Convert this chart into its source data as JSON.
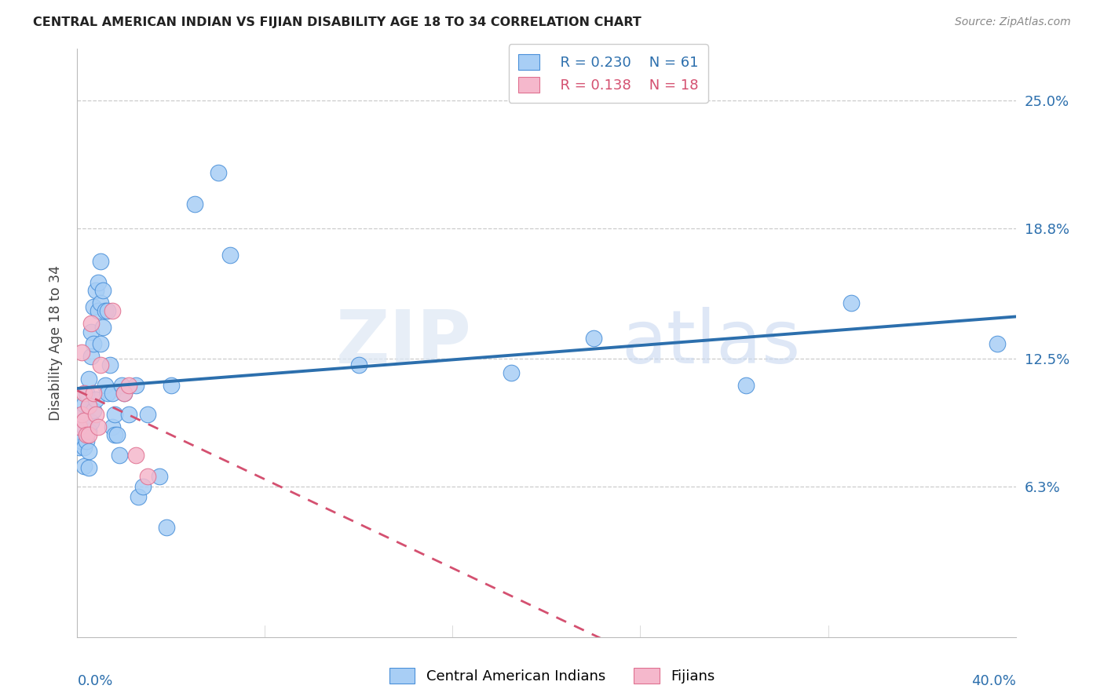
{
  "title": "CENTRAL AMERICAN INDIAN VS FIJIAN DISABILITY AGE 18 TO 34 CORRELATION CHART",
  "source": "Source: ZipAtlas.com",
  "ylabel": "Disability Age 18 to 34",
  "ytick_values": [
    0.063,
    0.125,
    0.188,
    0.25
  ],
  "ytick_labels": [
    "6.3%",
    "12.5%",
    "18.8%",
    "25.0%"
  ],
  "xlim": [
    0.0,
    0.4
  ],
  "ylim": [
    -0.01,
    0.275
  ],
  "legend_r1": "R = 0.230",
  "legend_n1": "N = 61",
  "legend_r2": "R = 0.138",
  "legend_n2": "N = 18",
  "blue_color": "#a8cef5",
  "blue_edge_color": "#4a90d9",
  "pink_color": "#f5b8cc",
  "pink_edge_color": "#e07090",
  "blue_line_color": "#2c6fad",
  "pink_line_color": "#d45070",
  "watermark_zip": "ZIP",
  "watermark_atlas": "atlas",
  "blue_x": [
    0.001,
    0.001,
    0.002,
    0.002,
    0.003,
    0.003,
    0.003,
    0.003,
    0.004,
    0.004,
    0.004,
    0.005,
    0.005,
    0.005,
    0.005,
    0.005,
    0.006,
    0.006,
    0.006,
    0.007,
    0.007,
    0.007,
    0.008,
    0.008,
    0.009,
    0.009,
    0.01,
    0.01,
    0.01,
    0.011,
    0.011,
    0.012,
    0.012,
    0.013,
    0.013,
    0.014,
    0.015,
    0.015,
    0.016,
    0.016,
    0.017,
    0.018,
    0.019,
    0.02,
    0.022,
    0.025,
    0.026,
    0.028,
    0.03,
    0.035,
    0.038,
    0.04,
    0.05,
    0.06,
    0.065,
    0.12,
    0.185,
    0.22,
    0.285,
    0.33,
    0.392
  ],
  "blue_y": [
    0.09,
    0.082,
    0.097,
    0.085,
    0.103,
    0.092,
    0.082,
    0.073,
    0.108,
    0.096,
    0.085,
    0.115,
    0.102,
    0.09,
    0.08,
    0.072,
    0.138,
    0.126,
    0.094,
    0.15,
    0.132,
    0.1,
    0.158,
    0.105,
    0.162,
    0.148,
    0.172,
    0.152,
    0.132,
    0.158,
    0.14,
    0.148,
    0.112,
    0.148,
    0.108,
    0.122,
    0.108,
    0.092,
    0.098,
    0.088,
    0.088,
    0.078,
    0.112,
    0.108,
    0.098,
    0.112,
    0.058,
    0.063,
    0.098,
    0.068,
    0.043,
    0.112,
    0.2,
    0.215,
    0.175,
    0.122,
    0.118,
    0.135,
    0.112,
    0.152,
    0.132
  ],
  "pink_x": [
    0.001,
    0.002,
    0.002,
    0.003,
    0.003,
    0.004,
    0.005,
    0.005,
    0.006,
    0.007,
    0.008,
    0.009,
    0.01,
    0.015,
    0.02,
    0.022,
    0.025,
    0.03
  ],
  "pink_y": [
    0.092,
    0.128,
    0.098,
    0.108,
    0.095,
    0.088,
    0.102,
    0.088,
    0.142,
    0.108,
    0.098,
    0.092,
    0.122,
    0.148,
    0.108,
    0.112,
    0.078,
    0.068
  ]
}
